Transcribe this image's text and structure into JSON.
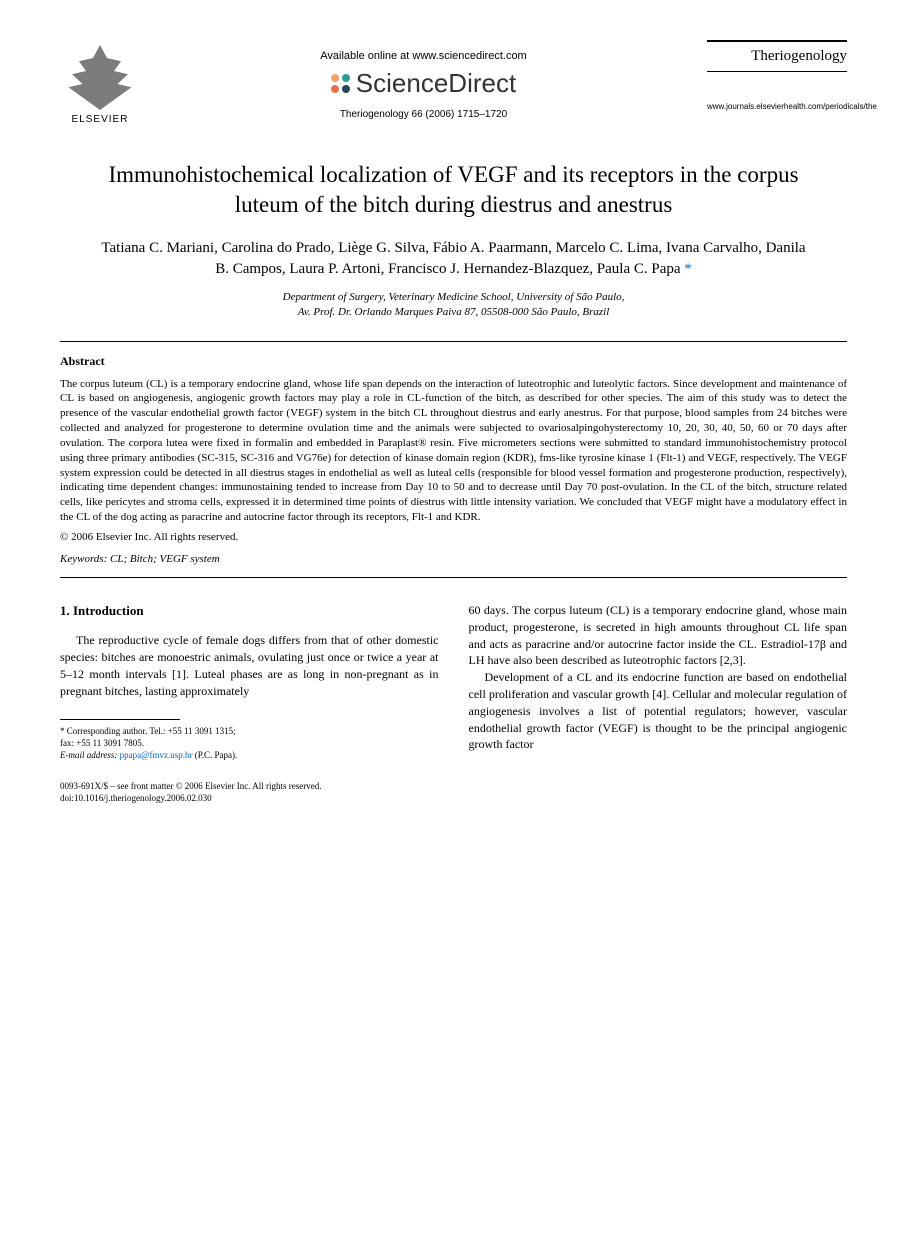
{
  "header": {
    "publisher_name": "ELSEVIER",
    "available_text": "Available online at www.sciencedirect.com",
    "platform_name": "ScienceDirect",
    "citation": "Theriogenology 66 (2006) 1715–1720",
    "journal_name": "Theriogenology",
    "journal_url": "www.journals.elsevierhealth.com/periodicals/the"
  },
  "article": {
    "title": "Immunohistochemical localization of VEGF and its receptors in the corpus luteum of the bitch during diestrus and anestrus",
    "authors": "Tatiana C. Mariani, Carolina do Prado, Liège G. Silva, Fábio A. Paarmann, Marcelo C. Lima, Ivana Carvalho, Danila B. Campos, Laura P. Artoni, Francisco J. Hernandez-Blazquez, Paula C. Papa",
    "corresponding_marker": "*",
    "affiliation_line1": "Department of Surgery, Veterinary Medicine School, University of São Paulo,",
    "affiliation_line2": "Av. Prof. Dr. Orlando Marques Paiva 87, 05508-000 São Paulo, Brazil"
  },
  "abstract": {
    "heading": "Abstract",
    "text": "The corpus luteum (CL) is a temporary endocrine gland, whose life span depends on the interaction of luteotrophic and luteolytic factors. Since development and maintenance of CL is based on angiogenesis, angiogenic growth factors may play a role in CL-function of the bitch, as described for other species. The aim of this study was to detect the presence of the vascular endothelial growth factor (VEGF) system in the bitch CL throughout diestrus and early anestrus. For that purpose, blood samples from 24 bitches were collected and analyzed for progesterone to determine ovulation time and the animals were subjected to ovariosalpingohysterectomy 10, 20, 30, 40, 50, 60 or 70 days after ovulation. The corpora lutea were fixed in formalin and embedded in Paraplast® resin. Five micrometers sections were submitted to standard immunohistochemistry protocol using three primary antibodies (SC-315, SC-316 and VG76e) for detection of kinase domain region (KDR), fms-like tyrosine kinase 1 (Flt-1) and VEGF, respectively. The VEGF system expression could be detected in all diestrus stages in endothelial as well as luteal cells (responsible for blood vessel formation and progesterone production, respectively), indicating time dependent changes: immunostaining tended to increase from Day 10 to 50 and to decrease until Day 70 post-ovulation. In the CL of the bitch, structure related cells, like pericytes and stroma cells, expressed it in determined time points of diestrus with little intensity variation. We concluded that VEGF might have a modulatory effect in the CL of the dog acting as paracrine and autocrine factor through its receptors, Flt-1 and KDR.",
    "copyright": "© 2006 Elsevier Inc. All rights reserved.",
    "keywords_label": "Keywords:",
    "keywords": "CL; Bitch; VEGF system"
  },
  "body": {
    "section_heading": "1. Introduction",
    "col1_p1": "The reproductive cycle of female dogs differs from that of other domestic species: bitches are monoestric animals, ovulating just once or twice a year at 5–12 month intervals [1]. Luteal phases are as long in non-pregnant as in pregnant bitches, lasting approximately",
    "col2_p1": "60 days. The corpus luteum (CL) is a temporary endocrine gland, whose main product, progesterone, is secreted in high amounts throughout CL life span and acts as paracrine and/or autocrine factor inside the CL. Estradiol-17β and LH have also been described as luteotrophic factors [2,3].",
    "col2_p2": "Development of a CL and its endocrine function are based on endothelial cell proliferation and vascular growth [4]. Cellular and molecular regulation of angiogenesis involves a list of potential regulators; however, vascular endothelial growth factor (VEGF) is thought to be the principal angiogenic growth factor"
  },
  "footnote": {
    "corresponding_label": "* Corresponding author. Tel.: +55 11 3091 1315;",
    "fax": "fax: +55 11 3091 7805.",
    "email_label": "E-mail address:",
    "email": "ppapa@fmvz.usp.br",
    "email_name": "(P.C. Papa)."
  },
  "footer": {
    "issn": "0093-691X/$ – see front matter © 2006 Elsevier Inc. All rights reserved.",
    "doi": "doi:10.1016/j.theriogenology.2006.02.030"
  },
  "colors": {
    "link": "#0066cc",
    "text": "#000000",
    "bg": "#ffffff"
  }
}
